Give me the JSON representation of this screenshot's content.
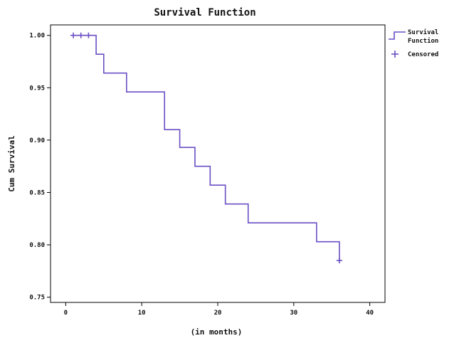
{
  "chart_data": {
    "type": "line",
    "title": "Survival Function",
    "xlabel": "(in months)",
    "ylabel": "Cum Survival",
    "xlim": [
      -2,
      42
    ],
    "ylim": [
      0.745,
      1.01
    ],
    "x_ticks": [
      0,
      10,
      20,
      30,
      40
    ],
    "y_ticks": [
      1.0,
      0.95,
      0.9,
      0.85,
      0.8,
      0.75
    ],
    "x_tick_labels": [
      "0",
      "10",
      "20",
      "30",
      "40"
    ],
    "y_tick_labels": [
      "1.00",
      "0.95",
      "0.90",
      "0.85",
      "0.80",
      "0.75"
    ],
    "line_color": "#6a4fc4",
    "series": [
      {
        "name": "Survival Function",
        "step_points": [
          {
            "x": 1,
            "y": 1.0
          },
          {
            "x": 4,
            "y": 0.982
          },
          {
            "x": 5,
            "y": 0.964
          },
          {
            "x": 8,
            "y": 0.946
          },
          {
            "x": 13,
            "y": 0.91
          },
          {
            "x": 15,
            "y": 0.893
          },
          {
            "x": 17,
            "y": 0.875
          },
          {
            "x": 19,
            "y": 0.857
          },
          {
            "x": 21,
            "y": 0.839
          },
          {
            "x": 24,
            "y": 0.821
          },
          {
            "x": 33,
            "y": 0.803
          },
          {
            "x": 36,
            "y": 0.785
          }
        ]
      }
    ],
    "censored": {
      "name": "Censored",
      "points": [
        {
          "x": 1,
          "y": 1.0
        },
        {
          "x": 2,
          "y": 1.0
        },
        {
          "x": 3,
          "y": 1.0
        },
        {
          "x": 36,
          "y": 0.785
        }
      ]
    },
    "legend": {
      "placement": "right",
      "entries": [
        {
          "label_line1": "Survival",
          "label_line2": "Function",
          "kind": "step-line"
        },
        {
          "label_line1": "Censored",
          "label_line2": "",
          "kind": "plus-marker"
        }
      ]
    },
    "grid": false
  }
}
